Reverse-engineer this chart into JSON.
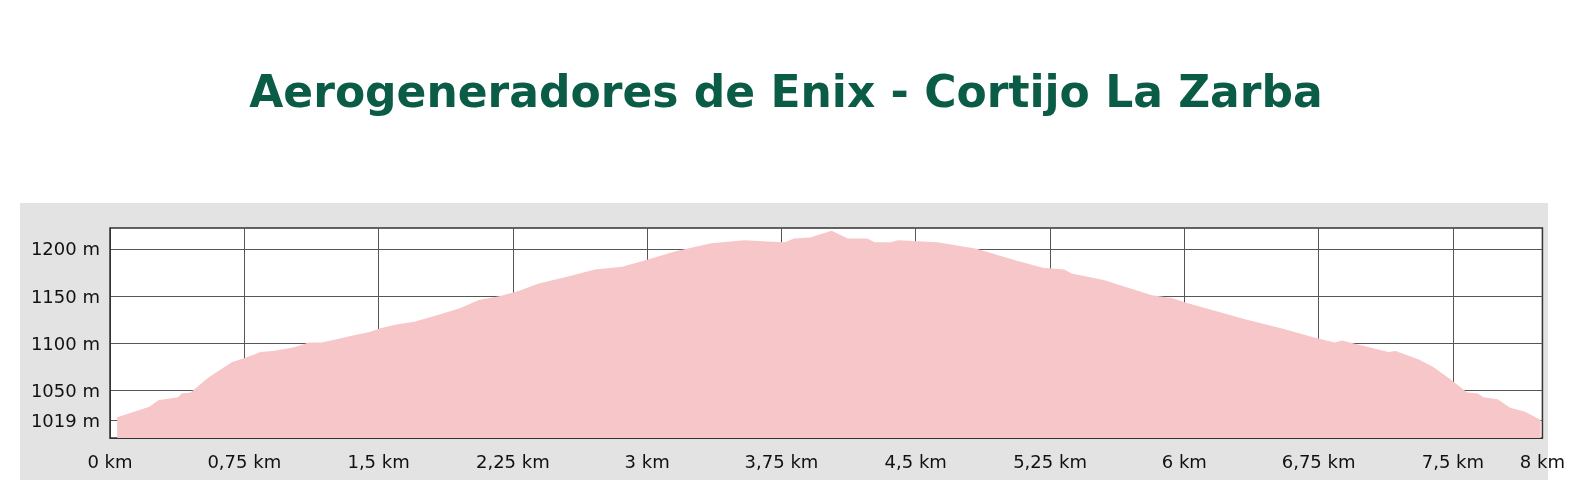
{
  "chart_data": {
    "type": "area",
    "title": "Aerogeneradores de Enix - Cortijo La Zarba",
    "x": [
      0.04,
      0.22,
      0.27,
      0.38,
      0.4,
      0.45,
      0.55,
      0.68,
      0.76,
      0.84,
      0.91,
      1.03,
      1.11,
      1.18,
      1.26,
      1.35,
      1.45,
      1.51,
      1.6,
      1.7,
      1.83,
      1.95,
      2.06,
      2.18,
      2.29,
      2.39,
      2.54,
      2.71,
      2.86,
      2.99,
      3.17,
      3.36,
      3.54,
      3.77,
      3.82,
      3.91,
      4.03,
      4.12,
      4.23,
      4.27,
      4.36,
      4.4,
      4.62,
      4.84,
      5.07,
      5.21,
      5.33,
      5.37,
      5.55,
      5.65,
      5.82,
      5.93,
      6.01,
      6.16,
      6.35,
      6.54,
      6.73,
      6.84,
      6.88,
      7.01,
      7.14,
      7.18,
      7.31,
      7.39,
      7.48,
      7.58,
      7.64,
      7.67,
      7.75,
      7.82,
      7.9,
      7.99
    ],
    "values": [
      1022,
      1033,
      1040,
      1043,
      1047,
      1048,
      1064,
      1080,
      1085,
      1091,
      1092,
      1096,
      1101,
      1101,
      1104,
      1108,
      1112,
      1116,
      1120,
      1123,
      1130,
      1137,
      1146,
      1150,
      1156,
      1163,
      1170,
      1178,
      1181,
      1188,
      1198,
      1206,
      1209,
      1207,
      1211,
      1212,
      1219,
      1211,
      1211,
      1207,
      1207,
      1209,
      1207,
      1200,
      1187,
      1180,
      1178,
      1174,
      1167,
      1161,
      1151,
      1148,
      1143,
      1135,
      1125,
      1116,
      1106,
      1101,
      1103,
      1097,
      1091,
      1092,
      1083,
      1075,
      1063,
      1048,
      1047,
      1043,
      1041,
      1032,
      1028,
      1019
    ],
    "color": "#f7c6c9",
    "xlim": [
      0,
      8
    ],
    "xticks": [
      {
        "value": 0,
        "label": "0 km"
      },
      {
        "value": 0.75,
        "label": "0,75 km"
      },
      {
        "value": 1.5,
        "label": "1,5 km"
      },
      {
        "value": 2.25,
        "label": "2,25 km"
      },
      {
        "value": 3,
        "label": "3 km"
      },
      {
        "value": 3.75,
        "label": "3,75 km"
      },
      {
        "value": 4.5,
        "label": "4,5 km"
      },
      {
        "value": 5.25,
        "label": "5,25 km"
      },
      {
        "value": 6,
        "label": "6 km"
      },
      {
        "value": 6.75,
        "label": "6,75 km"
      },
      {
        "value": 7.5,
        "label": "7,5 km"
      },
      {
        "value": 8,
        "label": "8 km"
      }
    ],
    "ylim": [
      1000,
      1222
    ],
    "yticks": [
      {
        "value": 1019,
        "label": "1019 m"
      },
      {
        "value": 1050,
        "label": "1050 m"
      },
      {
        "value": 1100,
        "label": "1100 m"
      },
      {
        "value": 1150,
        "label": "1150 m"
      },
      {
        "value": 1200,
        "label": "1200 m"
      }
    ],
    "grid": true,
    "marker": "none"
  }
}
